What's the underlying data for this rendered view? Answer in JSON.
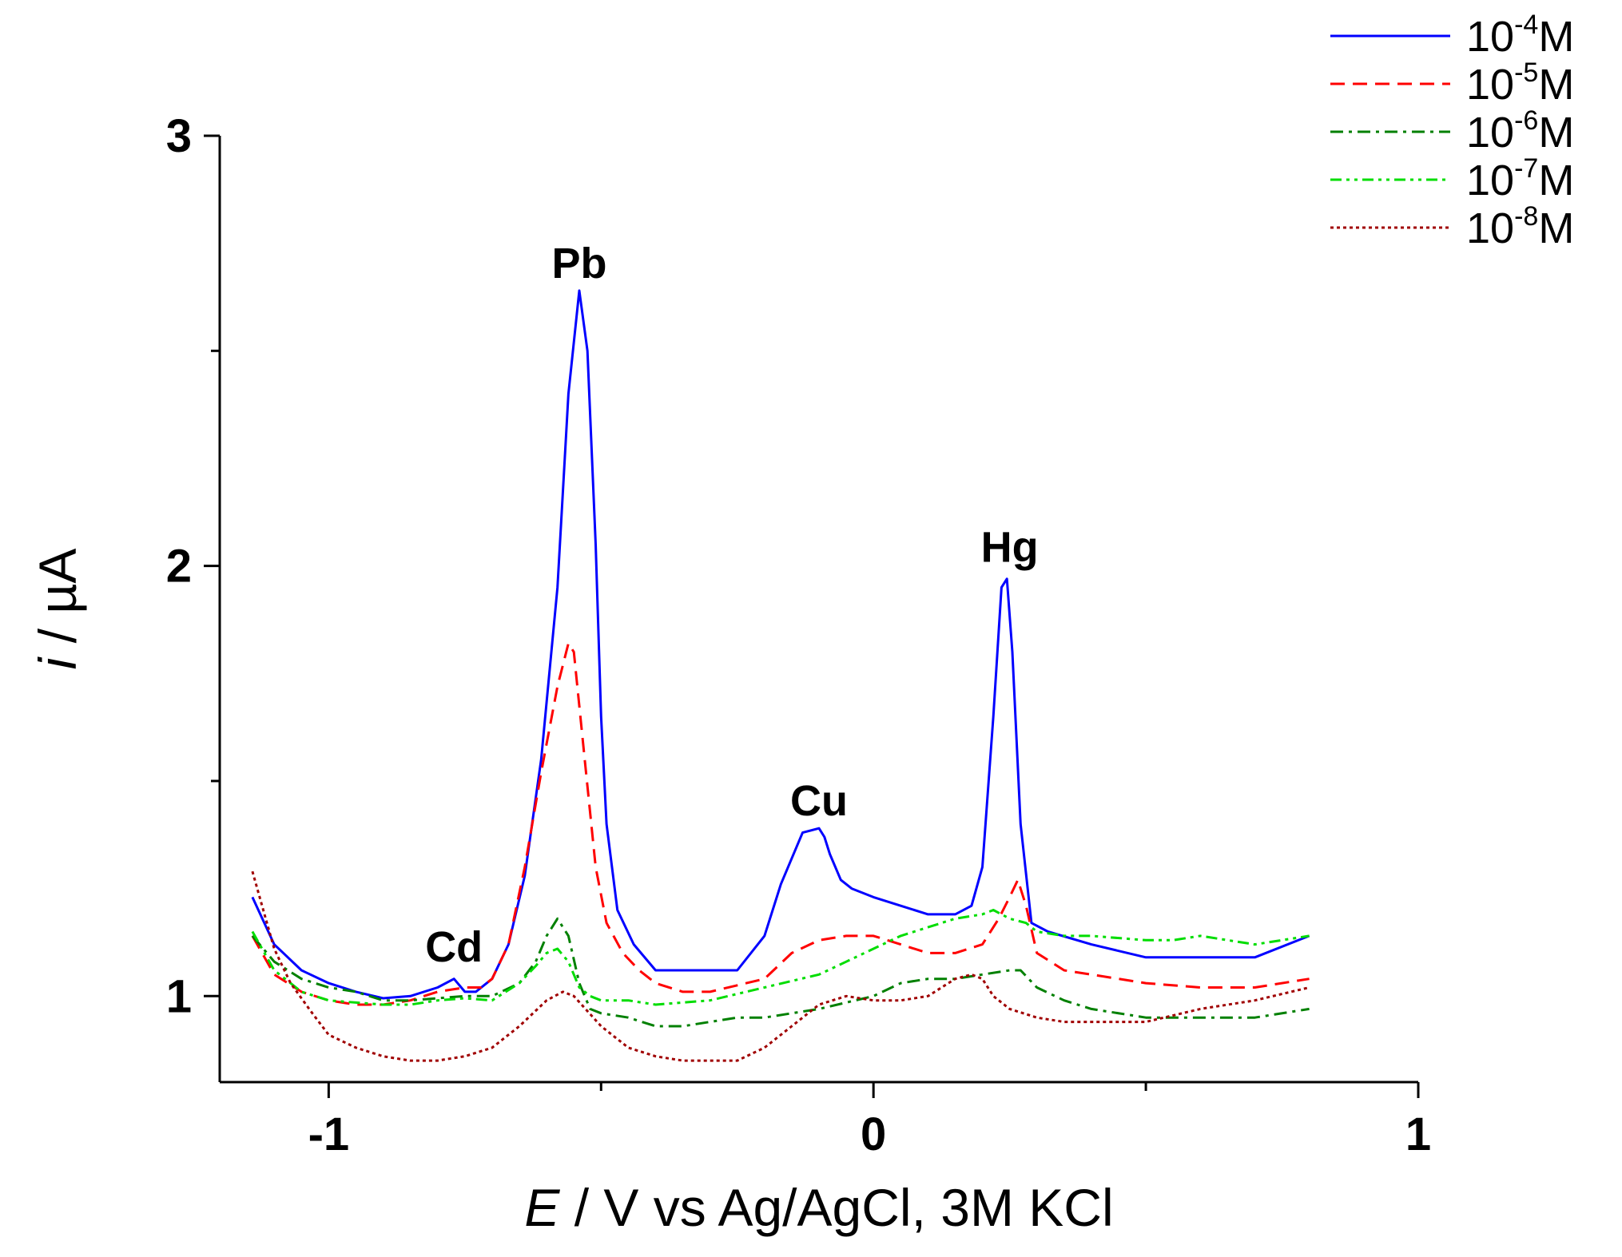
{
  "chart_data": {
    "type": "line",
    "title": "",
    "xlabel": {
      "italic": "E",
      "rest": " / V vs Ag/AgCl, 3M KCl"
    },
    "ylabel": {
      "italic": "i",
      "rest": " / µA"
    },
    "xlim": [
      -1.2,
      1.0
    ],
    "ylim": [
      0.8,
      3.0
    ],
    "xticks": [
      -1,
      0,
      1
    ],
    "xtick_labels": [
      "-1",
      "0",
      "1"
    ],
    "xminor": [
      -0.5,
      0.5
    ],
    "yticks": [
      1,
      2,
      3
    ],
    "ytick_labels": [
      "1",
      "2",
      "3"
    ],
    "yminor": [
      1.5,
      2.5
    ],
    "grid": false,
    "legend_position": "top-right",
    "annotations": [
      {
        "text": "Cd",
        "x": -0.77,
        "y": 1.08
      },
      {
        "text": "Pb",
        "x": -0.54,
        "y": 2.67
      },
      {
        "text": "Cu",
        "x": -0.1,
        "y": 1.42
      },
      {
        "text": "Hg",
        "x": 0.25,
        "y": 2.01
      }
    ],
    "series": [
      {
        "name": "10-4M",
        "legend_base": "10",
        "legend_exp": "-4",
        "legend_unit": "M",
        "color": "#0000ff",
        "dash": "solid",
        "x": [
          -1.14,
          -1.1,
          -1.05,
          -1.0,
          -0.95,
          -0.9,
          -0.85,
          -0.8,
          -0.77,
          -0.75,
          -0.73,
          -0.7,
          -0.67,
          -0.64,
          -0.61,
          -0.58,
          -0.56,
          -0.54,
          -0.525,
          -0.51,
          -0.5,
          -0.49,
          -0.47,
          -0.44,
          -0.4,
          -0.35,
          -0.3,
          -0.25,
          -0.2,
          -0.17,
          -0.13,
          -0.1,
          -0.09,
          -0.08,
          -0.06,
          -0.04,
          0.0,
          0.05,
          0.1,
          0.15,
          0.18,
          0.2,
          0.22,
          0.235,
          0.245,
          0.255,
          0.27,
          0.29,
          0.32,
          0.4,
          0.5,
          0.6,
          0.7,
          0.8
        ],
        "y": [
          1.23,
          1.12,
          1.06,
          1.03,
          1.01,
          0.995,
          1.0,
          1.02,
          1.04,
          1.01,
          1.01,
          1.04,
          1.12,
          1.28,
          1.55,
          1.95,
          2.4,
          2.64,
          2.5,
          2.05,
          1.65,
          1.4,
          1.2,
          1.12,
          1.06,
          1.06,
          1.06,
          1.06,
          1.14,
          1.26,
          1.38,
          1.39,
          1.37,
          1.33,
          1.27,
          1.25,
          1.23,
          1.21,
          1.19,
          1.19,
          1.21,
          1.3,
          1.65,
          1.95,
          1.97,
          1.8,
          1.4,
          1.17,
          1.15,
          1.12,
          1.09,
          1.09,
          1.09,
          1.14
        ]
      },
      {
        "name": "10-5M",
        "legend_base": "10",
        "legend_exp": "-5",
        "legend_unit": "M",
        "color": "#ff0000",
        "dash": "dashed",
        "x": [
          -1.14,
          -1.1,
          -1.05,
          -1.0,
          -0.95,
          -0.9,
          -0.85,
          -0.8,
          -0.75,
          -0.72,
          -0.7,
          -0.67,
          -0.64,
          -0.61,
          -0.58,
          -0.56,
          -0.55,
          -0.53,
          -0.51,
          -0.49,
          -0.46,
          -0.43,
          -0.4,
          -0.35,
          -0.3,
          -0.2,
          -0.15,
          -0.1,
          -0.05,
          0.0,
          0.05,
          0.1,
          0.15,
          0.2,
          0.23,
          0.25,
          0.265,
          0.28,
          0.3,
          0.35,
          0.4,
          0.5,
          0.6,
          0.7,
          0.8
        ],
        "y": [
          1.14,
          1.05,
          1.01,
          0.99,
          0.98,
          0.98,
          0.99,
          1.01,
          1.02,
          1.02,
          1.04,
          1.12,
          1.3,
          1.52,
          1.72,
          1.82,
          1.8,
          1.55,
          1.3,
          1.17,
          1.1,
          1.06,
          1.03,
          1.01,
          1.01,
          1.04,
          1.1,
          1.13,
          1.14,
          1.14,
          1.12,
          1.1,
          1.1,
          1.12,
          1.18,
          1.23,
          1.27,
          1.21,
          1.1,
          1.06,
          1.05,
          1.03,
          1.02,
          1.02,
          1.04
        ]
      },
      {
        "name": "10-6M",
        "legend_base": "10",
        "legend_exp": "-6",
        "legend_unit": "M",
        "color": "#008000",
        "dash": "dashdot",
        "x": [
          -1.14,
          -1.1,
          -1.05,
          -1.0,
          -0.95,
          -0.9,
          -0.85,
          -0.8,
          -0.75,
          -0.7,
          -0.65,
          -0.62,
          -0.6,
          -0.58,
          -0.56,
          -0.54,
          -0.52,
          -0.5,
          -0.45,
          -0.4,
          -0.35,
          -0.3,
          -0.25,
          -0.2,
          -0.1,
          0.0,
          0.05,
          0.1,
          0.15,
          0.2,
          0.25,
          0.27,
          0.3,
          0.35,
          0.4,
          0.5,
          0.6,
          0.7,
          0.8
        ],
        "y": [
          1.14,
          1.08,
          1.04,
          1.02,
          1.01,
          0.99,
          0.99,
          0.995,
          1.0,
          1.0,
          1.03,
          1.08,
          1.14,
          1.18,
          1.14,
          1.03,
          0.97,
          0.96,
          0.95,
          0.93,
          0.93,
          0.94,
          0.95,
          0.95,
          0.97,
          1.0,
          1.03,
          1.04,
          1.04,
          1.05,
          1.06,
          1.06,
          1.02,
          0.99,
          0.97,
          0.95,
          0.95,
          0.95,
          0.97
        ]
      },
      {
        "name": "10-7M",
        "legend_base": "10",
        "legend_exp": "-7",
        "legend_unit": "M",
        "color": "#00dd00",
        "dash": "dashdotdot",
        "x": [
          -1.14,
          -1.1,
          -1.05,
          -1.0,
          -0.95,
          -0.9,
          -0.85,
          -0.8,
          -0.75,
          -0.7,
          -0.65,
          -0.62,
          -0.6,
          -0.58,
          -0.56,
          -0.54,
          -0.52,
          -0.5,
          -0.45,
          -0.4,
          -0.3,
          -0.2,
          -0.1,
          -0.05,
          0.0,
          0.05,
          0.1,
          0.15,
          0.2,
          0.22,
          0.25,
          0.28,
          0.3,
          0.35,
          0.4,
          0.5,
          0.55,
          0.6,
          0.7,
          0.8
        ],
        "y": [
          1.15,
          1.06,
          1.01,
          0.99,
          0.985,
          0.98,
          0.98,
          0.99,
          0.995,
          0.99,
          1.03,
          1.07,
          1.1,
          1.11,
          1.08,
          1.02,
          1.0,
          0.99,
          0.99,
          0.98,
          0.99,
          1.02,
          1.05,
          1.08,
          1.11,
          1.14,
          1.16,
          1.18,
          1.19,
          1.2,
          1.18,
          1.17,
          1.15,
          1.14,
          1.14,
          1.13,
          1.13,
          1.14,
          1.12,
          1.14
        ]
      },
      {
        "name": "10-8M",
        "legend_base": "10",
        "legend_exp": "-8",
        "legend_unit": "M",
        "color": "#a00000",
        "dash": "dotted",
        "x": [
          -1.14,
          -1.12,
          -1.1,
          -1.07,
          -1.03,
          -1.0,
          -0.95,
          -0.9,
          -0.85,
          -0.8,
          -0.75,
          -0.7,
          -0.65,
          -0.6,
          -0.57,
          -0.55,
          -0.5,
          -0.45,
          -0.4,
          -0.35,
          -0.3,
          -0.25,
          -0.2,
          -0.15,
          -0.1,
          -0.05,
          0.0,
          0.05,
          0.1,
          0.15,
          0.18,
          0.2,
          0.22,
          0.25,
          0.3,
          0.35,
          0.4,
          0.5,
          0.6,
          0.7,
          0.8
        ],
        "y": [
          1.29,
          1.2,
          1.11,
          1.03,
          0.96,
          0.91,
          0.88,
          0.86,
          0.85,
          0.85,
          0.86,
          0.88,
          0.93,
          0.99,
          1.01,
          1.0,
          0.93,
          0.88,
          0.86,
          0.85,
          0.85,
          0.85,
          0.88,
          0.93,
          0.98,
          1.0,
          0.99,
          0.99,
          1.0,
          1.04,
          1.05,
          1.04,
          1.0,
          0.97,
          0.95,
          0.94,
          0.94,
          0.94,
          0.97,
          0.99,
          1.02
        ]
      }
    ]
  }
}
